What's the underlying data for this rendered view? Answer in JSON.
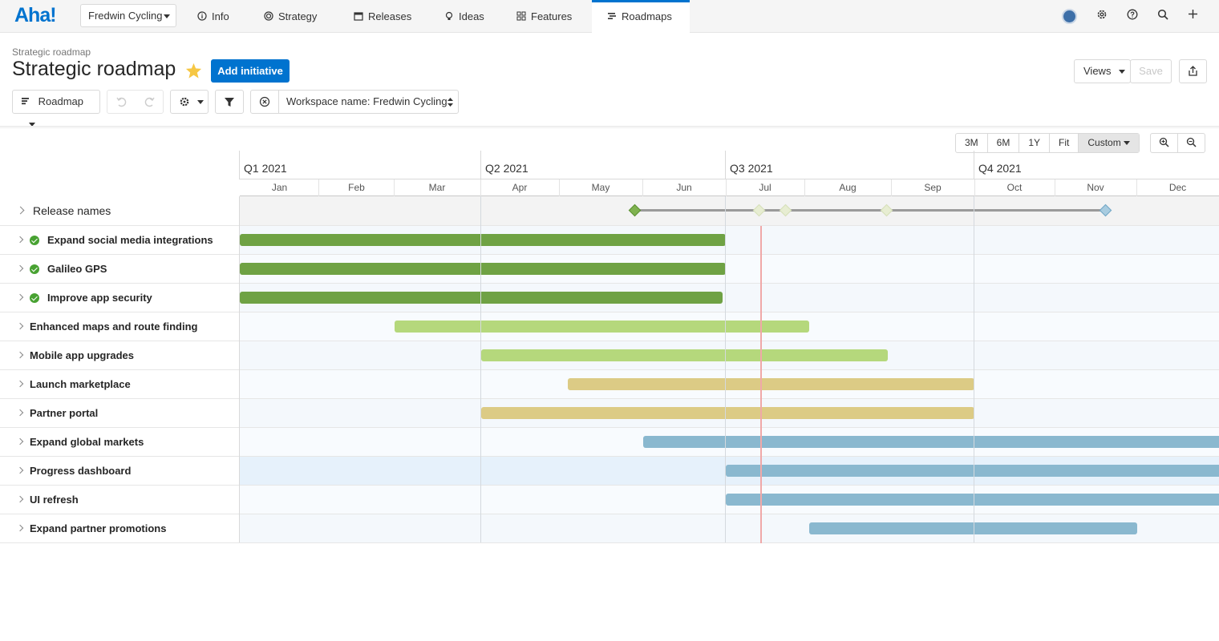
{
  "app": {
    "logo": "Aha!",
    "workspace": "Fredwin Cycling"
  },
  "nav": {
    "tabs": [
      {
        "label": "Info",
        "icon": "info-icon"
      },
      {
        "label": "Strategy",
        "icon": "target-icon"
      },
      {
        "label": "Releases",
        "icon": "calendar-icon"
      },
      {
        "label": "Ideas",
        "icon": "lightbulb-icon"
      },
      {
        "label": "Features",
        "icon": "grid-icon"
      },
      {
        "label": "Roadmaps",
        "icon": "roadmap-icon",
        "active": true
      }
    ]
  },
  "header": {
    "breadcrumb": "Strategic roadmap",
    "title": "Strategic roadmap",
    "add_button": "Add initiative",
    "views_button": "Views",
    "save_button": "Save"
  },
  "toolbar": {
    "view_select": "Roadmap",
    "filter_label": "Workspace name: Fredwin Cycling"
  },
  "zoom": {
    "options": [
      "3M",
      "6M",
      "1Y",
      "Fit",
      "Custom"
    ],
    "selected": "Custom"
  },
  "timeline": {
    "quarters": [
      "Q1 2021",
      "Q2 2021",
      "Q3 2021",
      "Q4 2021"
    ],
    "months": [
      "Jan",
      "Feb",
      "Mar",
      "Apr",
      "May",
      "Jun",
      "Jul",
      "Aug",
      "Sep",
      "Oct",
      "Nov",
      "Dec"
    ]
  },
  "release_row": {
    "label": "Release names"
  },
  "initiatives": [
    {
      "name": "Expand social media integrations",
      "done": true,
      "color": "#6fa244"
    },
    {
      "name": "Galileo GPS",
      "done": true,
      "color": "#6fa244"
    },
    {
      "name": "Improve app security",
      "done": true,
      "color": "#6fa244"
    },
    {
      "name": "Enhanced maps and route finding",
      "done": false,
      "color": "#b5d87c"
    },
    {
      "name": "Mobile app upgrades",
      "done": false,
      "color": "#b5d87c"
    },
    {
      "name": "Launch marketplace",
      "done": false,
      "color": "#dccb85"
    },
    {
      "name": "Partner portal",
      "done": false,
      "color": "#dccb85"
    },
    {
      "name": "Expand global markets",
      "done": false,
      "color": "#8ab8cf"
    },
    {
      "name": "Progress dashboard",
      "done": false,
      "color": "#8ab8cf"
    },
    {
      "name": "UI refresh",
      "done": false,
      "color": "#8ab8cf"
    },
    {
      "name": "Expand partner promotions",
      "done": false,
      "color": "#8ab8cf"
    }
  ],
  "colors": {
    "accent": "#0073cf",
    "today_line": "#f0a8a8"
  }
}
